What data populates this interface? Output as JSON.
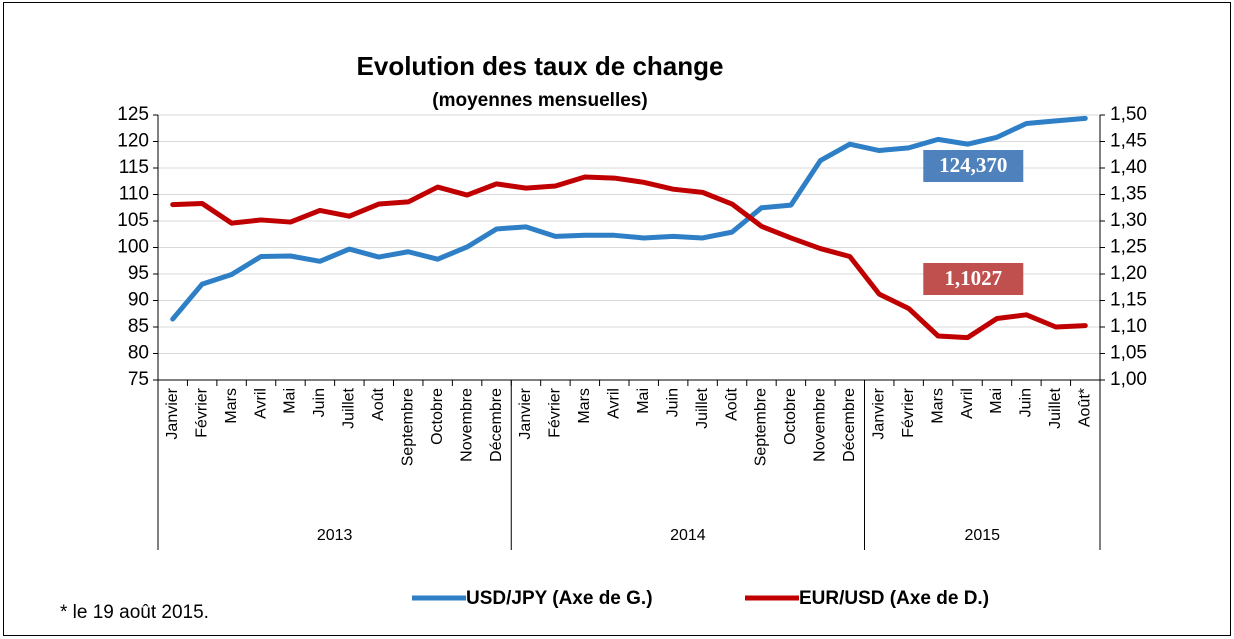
{
  "chart_data": {
    "type": "line",
    "title": "Evolution des taux de change",
    "subtitle": "(moyennes mensuelles)",
    "footnote": "* le 19 août 2015.",
    "categories": [
      "Janvier",
      "Février",
      "Mars",
      "Avril",
      "Mai",
      "Juin",
      "Juillet",
      "Août",
      "Septembre",
      "Octobre",
      "Novembre",
      "Décembre",
      "Janvier",
      "Février",
      "Mars",
      "Avril",
      "Mai",
      "Juin",
      "Juillet",
      "Août",
      "Septembre",
      "Octobre",
      "Novembre",
      "Décembre",
      "Janvier",
      "Février",
      "Mars",
      "Avril",
      "Mai",
      "Juin",
      "Juillet",
      "Août*"
    ],
    "groups": [
      "2013",
      "2014",
      "2015"
    ],
    "group_sizes": [
      12,
      12,
      8
    ],
    "ylim": [
      75,
      125
    ],
    "yticks": [
      75,
      80,
      85,
      90,
      95,
      100,
      105,
      110,
      115,
      120,
      125
    ],
    "y2lim": [
      1.0,
      1.5
    ],
    "y2ticks": [
      {
        "value": 1.0,
        "label": "1,00"
      },
      {
        "value": 1.05,
        "label": "1,05"
      },
      {
        "value": 1.1,
        "label": "1,10"
      },
      {
        "value": 1.15,
        "label": "1,15"
      },
      {
        "value": 1.2,
        "label": "1,20"
      },
      {
        "value": 1.25,
        "label": "1,25"
      },
      {
        "value": 1.3,
        "label": "1,30"
      },
      {
        "value": 1.35,
        "label": "1,35"
      },
      {
        "value": 1.4,
        "label": "1,40"
      },
      {
        "value": 1.45,
        "label": "1,45"
      },
      {
        "value": 1.5,
        "label": "1,50"
      }
    ],
    "grid": true,
    "legend": "bottom",
    "series": [
      {
        "name": "USD/JPY (Axe de G.)",
        "color": "#2e7fc6",
        "axis": "y",
        "values": [
          86.5,
          93.1,
          94.9,
          98.3,
          98.4,
          97.4,
          99.7,
          98.2,
          99.2,
          97.8,
          100.1,
          103.5,
          103.9,
          102.1,
          102.3,
          102.3,
          101.8,
          102.1,
          101.8,
          102.9,
          107.5,
          108.0,
          116.4,
          119.5,
          118.3,
          118.8,
          120.4,
          119.5,
          120.8,
          123.4,
          123.9,
          124.37
        ],
        "value_labels": [
          null,
          null,
          null,
          null,
          null,
          null,
          null,
          null,
          null,
          null,
          null,
          null,
          null,
          null,
          null,
          null,
          null,
          null,
          null,
          null,
          null,
          null,
          null,
          null,
          null,
          null,
          null,
          null,
          null,
          null,
          null,
          "124,370"
        ],
        "label_color": "#4f81bd"
      },
      {
        "name": "EUR/USD (Axe de D.)",
        "color": "#c00000",
        "axis": "y2",
        "values": [
          1.331,
          1.333,
          1.296,
          1.302,
          1.298,
          1.32,
          1.309,
          1.332,
          1.336,
          1.364,
          1.349,
          1.37,
          1.362,
          1.366,
          1.383,
          1.381,
          1.373,
          1.36,
          1.354,
          1.332,
          1.29,
          1.268,
          1.248,
          1.233,
          1.162,
          1.135,
          1.083,
          1.08,
          1.116,
          1.123,
          1.1,
          1.1027
        ],
        "value_labels": [
          null,
          null,
          null,
          null,
          null,
          null,
          null,
          null,
          null,
          null,
          null,
          null,
          null,
          null,
          null,
          null,
          null,
          null,
          null,
          null,
          null,
          null,
          null,
          null,
          null,
          null,
          null,
          null,
          null,
          null,
          null,
          "1,1027"
        ],
        "label_color": "#c0504d"
      }
    ]
  }
}
